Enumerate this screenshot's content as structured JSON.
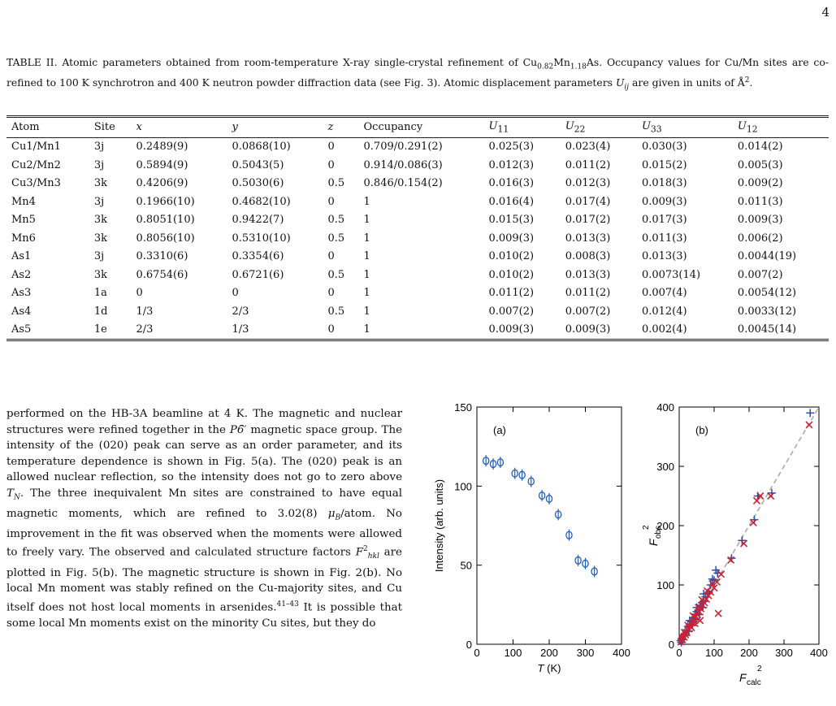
{
  "page_number": "4",
  "table": {
    "caption_parts": {
      "label": "TABLE II.",
      "t1": " Atomic parameters obtained from room-temperature X-ray single-crystal refinement of Cu",
      "s1": "0.82",
      "t2": "Mn",
      "s2": "1.18",
      "t3": "As. Occupancy values for Cu/Mn sites are co-refined to 100 K synchrotron and 400 K neutron powder diffraction data (see Fig. 3). Atomic displacement parameters ",
      "uij": "U",
      "uij_sub": "ij",
      "t4": " are given in units of Å",
      "sq": "2",
      "t5": "."
    },
    "headers": {
      "atom": "Atom",
      "site": "Site",
      "x": "x",
      "y": "y",
      "z": "z",
      "occ": "Occupancy",
      "u": "U",
      "u11": "11",
      "u22": "22",
      "u33": "33",
      "u12": "12"
    },
    "rows": [
      {
        "atom": "Cu1/Mn1",
        "site": "3j",
        "x": "0.2489(9)",
        "y": "0.0868(10)",
        "z": "0",
        "occ": "0.709/0.291(2)",
        "u11": "0.025(3)",
        "u22": "0.023(4)",
        "u33": "0.030(3)",
        "u12": "0.014(2)"
      },
      {
        "atom": "Cu2/Mn2",
        "site": "3j",
        "x": "0.5894(9)",
        "y": "0.5043(5)",
        "z": "0",
        "occ": "0.914/0.086(3)",
        "u11": "0.012(3)",
        "u22": "0.011(2)",
        "u33": "0.015(2)",
        "u12": "0.005(3)"
      },
      {
        "atom": "Cu3/Mn3",
        "site": "3k",
        "x": "0.4206(9)",
        "y": "0.5030(6)",
        "z": "0.5",
        "occ": "0.846/0.154(2)",
        "u11": "0.016(3)",
        "u22": "0.012(3)",
        "u33": "0.018(3)",
        "u12": "0.009(2)"
      },
      {
        "atom": "Mn4",
        "site": "3j",
        "x": "0.1966(10)",
        "y": "0.4682(10)",
        "z": "0",
        "occ": "1",
        "u11": "0.016(4)",
        "u22": "0.017(4)",
        "u33": "0.009(3)",
        "u12": "0.011(3)"
      },
      {
        "atom": "Mn5",
        "site": "3k",
        "x": "0.8051(10)",
        "y": "0.9422(7)",
        "z": "0.5",
        "occ": "1",
        "u11": "0.015(3)",
        "u22": "0.017(2)",
        "u33": "0.017(3)",
        "u12": "0.009(3)"
      },
      {
        "atom": "Mn6",
        "site": "3k",
        "x": "0.8056(10)",
        "y": "0.5310(10)",
        "z": "0.5",
        "occ": "1",
        "u11": "0.009(3)",
        "u22": "0.013(3)",
        "u33": "0.011(3)",
        "u12": "0.006(2)"
      },
      {
        "atom": "As1",
        "site": "3j",
        "x": "0.3310(6)",
        "y": "0.3354(6)",
        "z": "0",
        "occ": "1",
        "u11": "0.010(2)",
        "u22": "0.008(3)",
        "u33": "0.013(3)",
        "u12": "0.0044(19)"
      },
      {
        "atom": "As2",
        "site": "3k",
        "x": "0.6754(6)",
        "y": "0.6721(6)",
        "z": "0.5",
        "occ": "1",
        "u11": "0.010(2)",
        "u22": "0.013(3)",
        "u33": "0.0073(14)",
        "u12": "0.007(2)"
      },
      {
        "atom": "As3",
        "site": "1a",
        "x": "0",
        "y": "0",
        "z": "0",
        "occ": "1",
        "u11": "0.011(2)",
        "u22": "0.011(2)",
        "u33": "0.007(4)",
        "u12": "0.0054(12)"
      },
      {
        "atom": "As4",
        "site": "1d",
        "x": "1/3",
        "y": "2/3",
        "z": "0.5",
        "occ": "1",
        "u11": "0.007(2)",
        "u22": "0.007(2)",
        "u33": "0.012(4)",
        "u12": "0.0033(12)"
      },
      {
        "atom": "As5",
        "site": "1e",
        "x": "2/3",
        "y": "1/3",
        "z": "0",
        "occ": "1",
        "u11": "0.009(3)",
        "u22": "0.009(3)",
        "u33": "0.002(4)",
        "u12": "0.0045(14)"
      }
    ]
  },
  "body": {
    "p1": "performed on the HB-3A beamline at 4 K. The magnetic and nuclear structures were refined together in the ",
    "sg": "P6̄′",
    "p2": " magnetic space group. The intensity of the (020) peak can serve as an order parameter, and its temperature dependence is shown in Fig. 5(a). The (020) peak is an allowed nuclear reflection, so the intensity does not go to zero above ",
    "tn": "T",
    "tn_sub": "N",
    "p3": ". The three inequivalent Mn sites are constrained to have equal magnetic moments, which are refined to 3.02(8) ",
    "mub": "μ",
    "mub_sub": "B",
    "p4": "/atom. No improvement in the fit was observed when the moments were allowed to freely vary. The observed and calculated structure factors ",
    "f": "F",
    "f_sup": "2",
    "f_sub": "hkl",
    "p5": " are plotted in Fig. 5(b). The magnetic structure is shown in Fig. 2(b). No local Mn moment was stably refined on the Cu-majority sites, and Cu itself does not host local moments in arsenides.",
    "cite": "41–43",
    "p6": " It is possible that some local Mn moments exist on the minority Cu sites, but they do"
  },
  "chart_data": [
    {
      "type": "scatter",
      "panel_label": "(a)",
      "xlabel": "T",
      "xunit": " (K)",
      "ylabel": "Intensity (arb. units)",
      "xlim": [
        0,
        400
      ],
      "ylim": [
        0,
        150
      ],
      "xticks": [
        "0",
        "100",
        "200",
        "300",
        "400"
      ],
      "yticks": [
        "0",
        "50",
        "100",
        "150"
      ],
      "marker_color": "#1f5fbf",
      "points": [
        {
          "x": 25,
          "y": 116
        },
        {
          "x": 45,
          "y": 114
        },
        {
          "x": 65,
          "y": 115
        },
        {
          "x": 105,
          "y": 108
        },
        {
          "x": 125,
          "y": 107
        },
        {
          "x": 150,
          "y": 103
        },
        {
          "x": 180,
          "y": 94
        },
        {
          "x": 200,
          "y": 92
        },
        {
          "x": 225,
          "y": 82
        },
        {
          "x": 255,
          "y": 69
        },
        {
          "x": 280,
          "y": 53
        },
        {
          "x": 300,
          "y": 51
        },
        {
          "x": 325,
          "y": 46
        }
      ]
    },
    {
      "type": "scatter",
      "panel_label": "(b)",
      "xlabel": "F",
      "xlabel_sub": "calc",
      "xlabel_sup": "2",
      "ylabel": "F",
      "ylabel_sub": "obs",
      "ylabel_sup": "2",
      "xlim": [
        0,
        400
      ],
      "ylim": [
        0,
        400
      ],
      "xticks": [
        "0",
        "100",
        "200",
        "300",
        "400"
      ],
      "yticks": [
        "0",
        "100",
        "200",
        "300",
        "400"
      ],
      "identity_line": true,
      "series_colors": {
        "plus": "#2b4fa8",
        "cross": "#cc2233",
        "line": "#aaaaaa"
      },
      "plus_points": [
        [
          4,
          6
        ],
        [
          8,
          10
        ],
        [
          12,
          14
        ],
        [
          16,
          18
        ],
        [
          20,
          24
        ],
        [
          25,
          30
        ],
        [
          30,
          33
        ],
        [
          35,
          38
        ],
        [
          40,
          45
        ],
        [
          45,
          50
        ],
        [
          50,
          55
        ],
        [
          55,
          58
        ],
        [
          60,
          66
        ],
        [
          65,
          70
        ],
        [
          70,
          72
        ],
        [
          75,
          80
        ],
        [
          80,
          85
        ],
        [
          85,
          88
        ],
        [
          90,
          100
        ],
        [
          100,
          108
        ],
        [
          110,
          120
        ],
        [
          150,
          145
        ],
        [
          180,
          175
        ],
        [
          215,
          210
        ],
        [
          225,
          250
        ],
        [
          265,
          255
        ],
        [
          375,
          390
        ],
        [
          6,
          3
        ],
        [
          10,
          8
        ],
        [
          18,
          15
        ],
        [
          28,
          22
        ],
        [
          38,
          32
        ],
        [
          48,
          42
        ],
        [
          58,
          50
        ],
        [
          68,
          62
        ],
        [
          30,
          40
        ],
        [
          50,
          62
        ],
        [
          70,
          85
        ],
        [
          95,
          110
        ],
        [
          105,
          125
        ]
      ],
      "cross_points": [
        [
          5,
          4
        ],
        [
          9,
          8
        ],
        [
          14,
          12
        ],
        [
          18,
          16
        ],
        [
          22,
          20
        ],
        [
          27,
          26
        ],
        [
          32,
          30
        ],
        [
          37,
          36
        ],
        [
          42,
          40
        ],
        [
          47,
          46
        ],
        [
          52,
          50
        ],
        [
          57,
          55
        ],
        [
          62,
          60
        ],
        [
          67,
          66
        ],
        [
          72,
          70
        ],
        [
          78,
          76
        ],
        [
          84,
          82
        ],
        [
          90,
          88
        ],
        [
          100,
          95
        ],
        [
          108,
          105
        ],
        [
          112,
          52
        ],
        [
          148,
          142
        ],
        [
          185,
          170
        ],
        [
          212,
          205
        ],
        [
          222,
          242
        ],
        [
          232,
          250
        ],
        [
          262,
          250
        ],
        [
          372,
          370
        ],
        [
          8,
          12
        ],
        [
          15,
          20
        ],
        [
          25,
          32
        ],
        [
          40,
          48
        ],
        [
          55,
          62
        ],
        [
          65,
          75
        ],
        [
          80,
          90
        ],
        [
          95,
          102
        ],
        [
          120,
          118
        ],
        [
          60,
          40
        ],
        [
          45,
          35
        ],
        [
          35,
          28
        ]
      ]
    }
  ]
}
